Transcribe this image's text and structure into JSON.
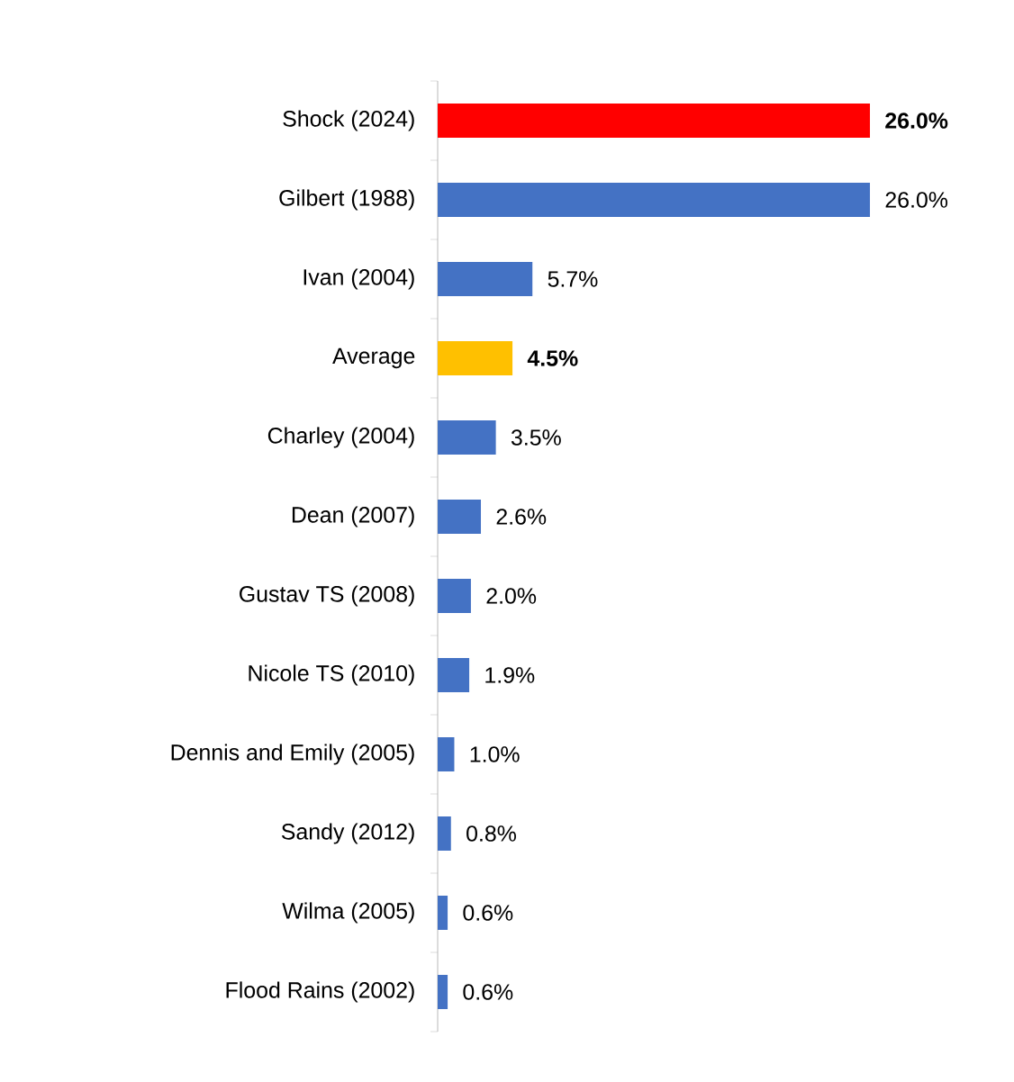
{
  "chart_data": {
    "type": "bar",
    "orientation": "horizontal",
    "categories": [
      "Shock (2024)",
      "Gilbert  (1988)",
      "Ivan (2004)",
      "Average",
      "Charley (2004)",
      "Dean (2007)",
      "Gustav TS (2008)",
      "Nicole TS (2010)",
      "Dennis and Emily (2005)",
      "Sandy (2012)",
      "Wilma (2005)",
      "Flood Rains (2002)"
    ],
    "values": [
      26.0,
      26.0,
      5.7,
      4.5,
      3.5,
      2.6,
      2.0,
      1.9,
      1.0,
      0.8,
      0.6,
      0.6
    ],
    "colors": [
      "#ff0000",
      "#4472c4",
      "#4472c4",
      "#ffc000",
      "#4472c4",
      "#4472c4",
      "#4472c4",
      "#4472c4",
      "#4472c4",
      "#4472c4",
      "#4472c4",
      "#4472c4"
    ],
    "value_labels": [
      "**26.0%**",
      "26.0%",
      "5.7%",
      "**4.5%**",
      "3.5%",
      "2.6%",
      "2.0%",
      "1.9%",
      "1.0%",
      "0.8%",
      "0.6%",
      "0.6%"
    ],
    "tick_labels": "y"
  }
}
